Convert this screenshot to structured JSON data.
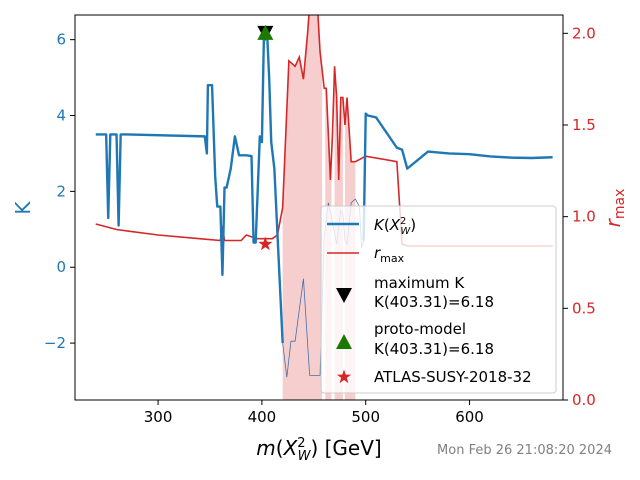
{
  "chart_data": {
    "type": "line",
    "xlabel": "m(X_W^2) [GeV]",
    "ylabel_left": "K",
    "ylabel_right": "r_max",
    "xlim": [
      220,
      690
    ],
    "ylim_left": [
      -3.5,
      6.65
    ],
    "ylim_right": [
      0.0,
      2.1
    ],
    "xticks": [
      "300",
      "400",
      "500",
      "600"
    ],
    "yticks_left": [
      "−2",
      "0",
      "2",
      "4",
      "6"
    ],
    "yticks_right": [
      "0.0",
      "0.5",
      "1.0",
      "1.5",
      "2.0"
    ],
    "timestamp": "Mon Feb 26 21:08:20 2024",
    "colors": {
      "K": "#1f77b4",
      "rmax": "#d62728",
      "fill": "#f4c6c6",
      "max_marker": "#000000",
      "proto_marker": "#1a7a00",
      "atlas_marker": "#d62728"
    },
    "series": [
      {
        "name": "K(X_W^2)",
        "axis": "left",
        "x": [
          240,
          250,
          252,
          254,
          260,
          262,
          264,
          270,
          345,
          347,
          348,
          350,
          352,
          355,
          357,
          360,
          362,
          364,
          366,
          370,
          374,
          378,
          380,
          385,
          390,
          392,
          394,
          398,
          400,
          402,
          403.31,
          405,
          407,
          409,
          412,
          420,
          424,
          428,
          432,
          440,
          446,
          452,
          456,
          460,
          464,
          468,
          472,
          476,
          478,
          480,
          482,
          486,
          490,
          494,
          496,
          498,
          500,
          502,
          510,
          530,
          535,
          540,
          560,
          580,
          600,
          620,
          640,
          660,
          680
        ],
        "values": [
          3.5,
          3.5,
          1.3,
          3.5,
          3.5,
          1.1,
          3.5,
          3.5,
          3.45,
          3.0,
          4.8,
          4.8,
          4.8,
          2.4,
          1.6,
          1.6,
          -0.2,
          2.1,
          2.1,
          2.6,
          3.45,
          2.95,
          2.95,
          2.95,
          2.93,
          0.65,
          0.65,
          3.45,
          3.3,
          6.18,
          6.18,
          6.18,
          5.0,
          3.3,
          2.6,
          -2.0,
          -2.9,
          -1.95,
          -1.95,
          -0.3,
          -2.85,
          -2.85,
          -2.85,
          0.8,
          1.7,
          1.2,
          0.6,
          1.5,
          1.4,
          0.7,
          0.6,
          1.7,
          1.8,
          1.6,
          0.5,
          0.7,
          4.05,
          4.0,
          3.95,
          3.15,
          3.1,
          2.6,
          3.05,
          3.0,
          2.98,
          2.92,
          2.89,
          2.88,
          2.9
        ]
      },
      {
        "name": "r_max",
        "axis": "right",
        "x": [
          240,
          260,
          300,
          340,
          360,
          362,
          364,
          370,
          380,
          385,
          395,
          410,
          415,
          420,
          426,
          432,
          436,
          440,
          444,
          448,
          452,
          456,
          460,
          462,
          466,
          468,
          470,
          472,
          474,
          476,
          478,
          480,
          482,
          486,
          490,
          500,
          530,
          535,
          540,
          600,
          680
        ],
        "values": [
          0.96,
          0.93,
          0.9,
          0.88,
          0.87,
          0.95,
          0.87,
          0.87,
          0.87,
          0.9,
          0.88,
          0.88,
          0.9,
          1.05,
          1.85,
          1.82,
          1.87,
          1.75,
          2.0,
          2.3,
          2.3,
          1.9,
          1.7,
          1.7,
          1.2,
          1.45,
          1.82,
          1.65,
          1.2,
          1.65,
          1.65,
          1.5,
          1.65,
          1.3,
          1.3,
          1.33,
          1.3,
          0.85,
          0.84,
          0.84,
          0.84
        ]
      }
    ],
    "markers": [
      {
        "name": "maximum K",
        "label_line2": " K(403.31)=6.18",
        "x": 403.31,
        "y": 6.18,
        "shape": "triangle-down"
      },
      {
        "name": "proto-model",
        "label_line2": "K(403.31)=6.18",
        "x": 403.31,
        "y": 6.18,
        "shape": "triangle-up"
      },
      {
        "name": "ATLAS-SUSY-2018-32",
        "x": 403.31,
        "y": 0.85,
        "shape": "star"
      }
    ],
    "legend": {
      "position": "lower-right"
    }
  }
}
